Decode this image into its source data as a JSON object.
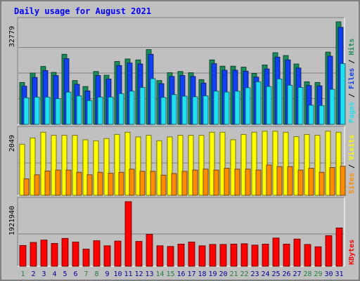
{
  "title": "Daily usage for August 2021",
  "colors": {
    "hits": "#1a8c5a",
    "files": "#1040f0",
    "pages": "#20e0f0",
    "visits": "#ffff00",
    "sites": "#ff8c00",
    "kbytes": "#ff0000",
    "weekday_label": "#0000a0",
    "weekend_label": "#208040"
  },
  "days": [
    "1",
    "2",
    "3",
    "4",
    "5",
    "6",
    "7",
    "8",
    "9",
    "10",
    "11",
    "12",
    "13",
    "14",
    "15",
    "16",
    "17",
    "18",
    "19",
    "20",
    "21",
    "22",
    "23",
    "24",
    "25",
    "26",
    "27",
    "28",
    "29",
    "30",
    "31"
  ],
  "weekend_days": [
    1,
    7,
    8,
    14,
    15,
    21,
    22,
    28,
    29
  ],
  "chart_data": [
    {
      "type": "bar",
      "ylabel_parts": [
        "Pages",
        "Files",
        "Hits"
      ],
      "ylabel_separator": " / ",
      "max_label": "32779",
      "ylim": [
        0,
        32779
      ],
      "series": [
        {
          "name": "Hits",
          "values": [
            13400,
            16400,
            18500,
            16600,
            22400,
            14000,
            12100,
            16900,
            15700,
            20100,
            20900,
            20600,
            23900,
            14000,
            16500,
            16900,
            16500,
            14300,
            20600,
            18600,
            18600,
            18300,
            16300,
            19000,
            22900,
            22000,
            19300,
            13600,
            13400,
            23100,
            32779
          ]
        },
        {
          "name": "Files",
          "values": [
            12200,
            15000,
            17200,
            15600,
            21000,
            12800,
            10700,
            15600,
            14500,
            18800,
            19600,
            19300,
            22400,
            13000,
            15300,
            15600,
            15300,
            13200,
            19400,
            17300,
            17300,
            17000,
            15100,
            17700,
            21500,
            20600,
            18000,
            12400,
            12300,
            21800,
            31000
          ]
        },
        {
          "name": "Pages",
          "values": [
            8500,
            8700,
            8700,
            8200,
            10300,
            9100,
            7600,
            8700,
            8700,
            9800,
            10600,
            11800,
            14600,
            8600,
            9500,
            9000,
            8800,
            9100,
            10600,
            10300,
            10600,
            11700,
            13600,
            12100,
            14500,
            12500,
            11800,
            6100,
            6000,
            11200,
            19400
          ]
        }
      ]
    },
    {
      "type": "bar",
      "ylabel_parts": [
        "Sites",
        "Visits"
      ],
      "ylabel_separator": " / ",
      "max_label": "2049",
      "ylim": [
        0,
        2049
      ],
      "series": [
        {
          "name": "Visits",
          "values": [
            1620,
            1820,
            2000,
            1900,
            1900,
            1900,
            1760,
            1730,
            1800,
            1930,
            2000,
            1850,
            1900,
            1730,
            1850,
            1900,
            1900,
            1900,
            2000,
            2000,
            1760,
            1930,
            2000,
            2030,
            2030,
            2000,
            1860,
            1930,
            1900,
            2030,
            2000
          ]
        },
        {
          "name": "Sites",
          "values": [
            520,
            650,
            770,
            800,
            800,
            730,
            650,
            730,
            700,
            730,
            830,
            760,
            760,
            640,
            690,
            760,
            800,
            830,
            800,
            860,
            830,
            830,
            800,
            960,
            910,
            910,
            800,
            860,
            730,
            880,
            920
          ]
        }
      ]
    },
    {
      "type": "bar",
      "ylabel_parts": [
        "KBytes"
      ],
      "ylabel_separator": "",
      "max_label": "1921940",
      "ylim": [
        0,
        1921940
      ],
      "series": [
        {
          "name": "KBytes",
          "values": [
            620000,
            710000,
            780000,
            680000,
            830000,
            720000,
            510000,
            760000,
            610000,
            750000,
            1921940,
            740000,
            950000,
            610000,
            590000,
            660000,
            720000,
            610000,
            650000,
            650000,
            660000,
            670000,
            630000,
            660000,
            840000,
            660000,
            810000,
            650000,
            580000,
            910000,
            1140000
          ]
        }
      ]
    }
  ]
}
